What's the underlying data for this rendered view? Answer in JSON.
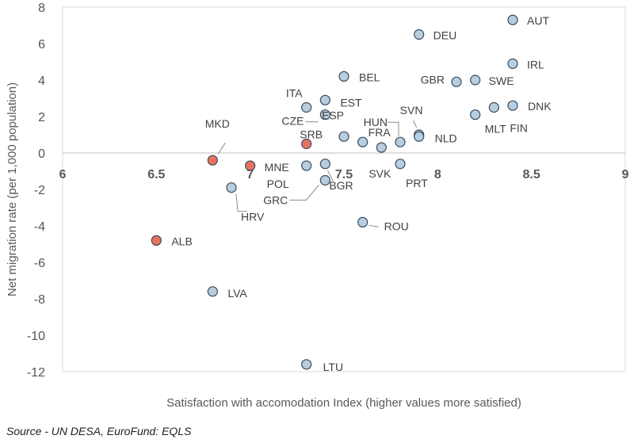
{
  "chart_data": {
    "type": "scatter",
    "title": "",
    "xlabel": "Satisfaction with accomodation Index (higher values more satisfied)",
    "ylabel": "Net migration rate (per 1,000 population)",
    "xlim": [
      6,
      9
    ],
    "ylim": [
      -12,
      8
    ],
    "x_ticks": [
      "6",
      "6.5",
      "7",
      "7.5",
      "8",
      "8.5",
      "9"
    ],
    "y_ticks": [
      "8",
      "6",
      "4",
      "2",
      "0",
      "-2",
      "-4",
      "-6",
      "-8",
      "-10",
      "-12"
    ],
    "grid": false,
    "colors": {
      "default": "#b7cde0",
      "highlight": "#e8735f",
      "edge": "#3a4a5a"
    },
    "points": [
      {
        "label": "AUT",
        "x": 8.4,
        "y": 7.3,
        "highlight": false
      },
      {
        "label": "DEU",
        "x": 7.9,
        "y": 6.5,
        "highlight": false
      },
      {
        "label": "IRL",
        "x": 8.4,
        "y": 4.9,
        "highlight": false
      },
      {
        "label": "BEL",
        "x": 7.5,
        "y": 4.2,
        "highlight": false
      },
      {
        "label": "GBR",
        "x": 8.1,
        "y": 3.9,
        "highlight": false
      },
      {
        "label": "SWE",
        "x": 8.2,
        "y": 4.0,
        "highlight": false
      },
      {
        "label": "EST",
        "x": 7.4,
        "y": 2.9,
        "highlight": false
      },
      {
        "label": "ITA",
        "x": 7.3,
        "y": 2.5,
        "highlight": false
      },
      {
        "label": "DNK",
        "x": 8.4,
        "y": 2.6,
        "highlight": false
      },
      {
        "label": "FIN",
        "x": 8.3,
        "y": 2.5,
        "highlight": false
      },
      {
        "label": "MLT",
        "x": 8.2,
        "y": 2.1,
        "highlight": false
      },
      {
        "label": "CZE",
        "x": 7.4,
        "y": 2.1,
        "highlight": false
      },
      {
        "label": "HUN",
        "x": 7.8,
        "y": 0.6,
        "highlight": false
      },
      {
        "label": "SVN",
        "x": 7.9,
        "y": 1.0,
        "highlight": false
      },
      {
        "label": "NLD",
        "x": 7.9,
        "y": 0.9,
        "highlight": false
      },
      {
        "label": "ESP",
        "x": 7.5,
        "y": 0.9,
        "highlight": false
      },
      {
        "label": "FRA",
        "x": 7.6,
        "y": 0.6,
        "highlight": false
      },
      {
        "label": "SVK",
        "x": 7.7,
        "y": 0.3,
        "highlight": false
      },
      {
        "label": "PRT",
        "x": 7.8,
        "y": -0.6,
        "highlight": false
      },
      {
        "label": "MKD",
        "x": 6.8,
        "y": -0.4,
        "highlight": true
      },
      {
        "label": "SRB",
        "x": 7.3,
        "y": 0.5,
        "highlight": true
      },
      {
        "label": "MNE",
        "x": 7.0,
        "y": -0.7,
        "highlight": true
      },
      {
        "label": "POL",
        "x": 7.3,
        "y": -0.7,
        "highlight": false
      },
      {
        "label": "BGR",
        "x": 7.4,
        "y": -0.6,
        "highlight": false
      },
      {
        "label": "GRC",
        "x": 7.4,
        "y": -1.5,
        "highlight": false
      },
      {
        "label": "HRV",
        "x": 6.9,
        "y": -1.9,
        "highlight": false
      },
      {
        "label": "ROU",
        "x": 7.6,
        "y": -3.8,
        "highlight": false
      },
      {
        "label": "ALB",
        "x": 6.5,
        "y": -4.8,
        "highlight": true
      },
      {
        "label": "LVA",
        "x": 6.8,
        "y": -7.6,
        "highlight": false
      },
      {
        "label": "LTU",
        "x": 7.3,
        "y": -11.6,
        "highlight": false
      }
    ]
  },
  "source_text": "Source -  UN DESA, EuroFund: EQLS"
}
